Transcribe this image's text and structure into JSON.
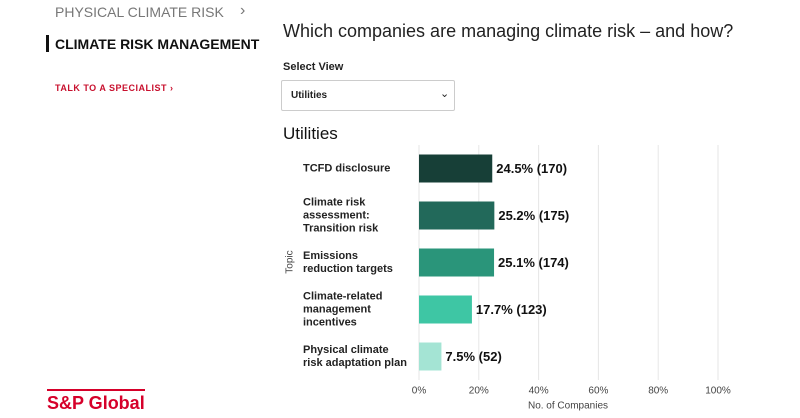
{
  "nav": {
    "items": [
      "PHYSICAL CLIMATE RISK",
      "CLIMATE RISK MANAGEMENT"
    ],
    "cta": "TALK TO A SPECIALIST ›"
  },
  "logo": "S&P Global",
  "heading": "Which companies are managing climate risk – and how?",
  "select": {
    "label": "Select View",
    "value": "Utilities"
  },
  "chart_data": {
    "type": "bar",
    "orientation": "horizontal",
    "title": "Utilities",
    "categories": [
      "TCFD disclosure",
      "Climate risk assessment: Transition risk",
      "Emissions reduction targets",
      "Climate-related management incentives",
      "Physical climate risk adaptation plan"
    ],
    "values": [
      24.5,
      25.2,
      25.1,
      17.7,
      7.5
    ],
    "value_labels": [
      "24.5% (170)",
      "25.2% (175)",
      "25.1% (174)",
      "17.7% (123)",
      "7.5% (52)"
    ],
    "colors": [
      "#173f37",
      "#22695a",
      "#2a957a",
      "#3ec6a4",
      "#a4e4d4"
    ],
    "xlim": [
      0,
      100
    ],
    "xticks": [
      {
        "value": 0,
        "label": "0%"
      },
      {
        "value": 20,
        "label": "20%"
      },
      {
        "value": 40,
        "label": "40%"
      },
      {
        "value": 60,
        "label": "60%"
      },
      {
        "value": 80,
        "label": "80%"
      },
      {
        "value": 100,
        "label": "100%"
      }
    ],
    "xlabel": "No. of Companies",
    "ylabel": "Topic",
    "grid": true
  }
}
